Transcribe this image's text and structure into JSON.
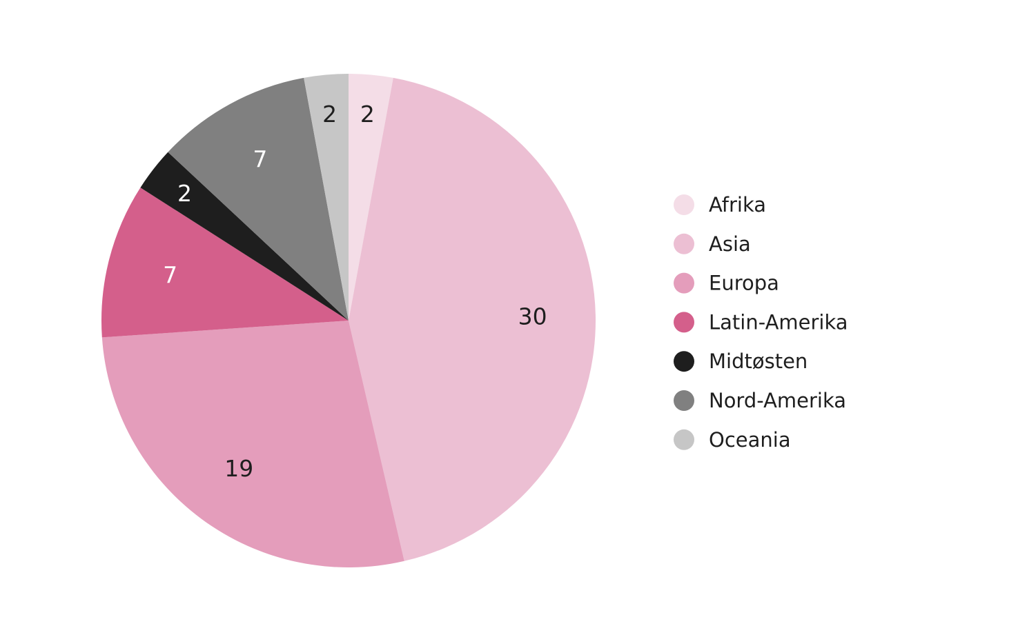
{
  "chart_data": {
    "type": "pie",
    "categories": [
      "Afrika",
      "Asia",
      "Europa",
      "Latin-Amerika",
      "Midtøsten",
      "Nord-Amerika",
      "Oceania"
    ],
    "values": [
      2,
      30,
      19,
      7,
      2,
      7,
      2
    ],
    "colors": [
      "#f4dde7",
      "#ecbfd3",
      "#e49dbb",
      "#d45f8b",
      "#1e1e1e",
      "#808080",
      "#c6c6c6"
    ],
    "legend": "right"
  }
}
